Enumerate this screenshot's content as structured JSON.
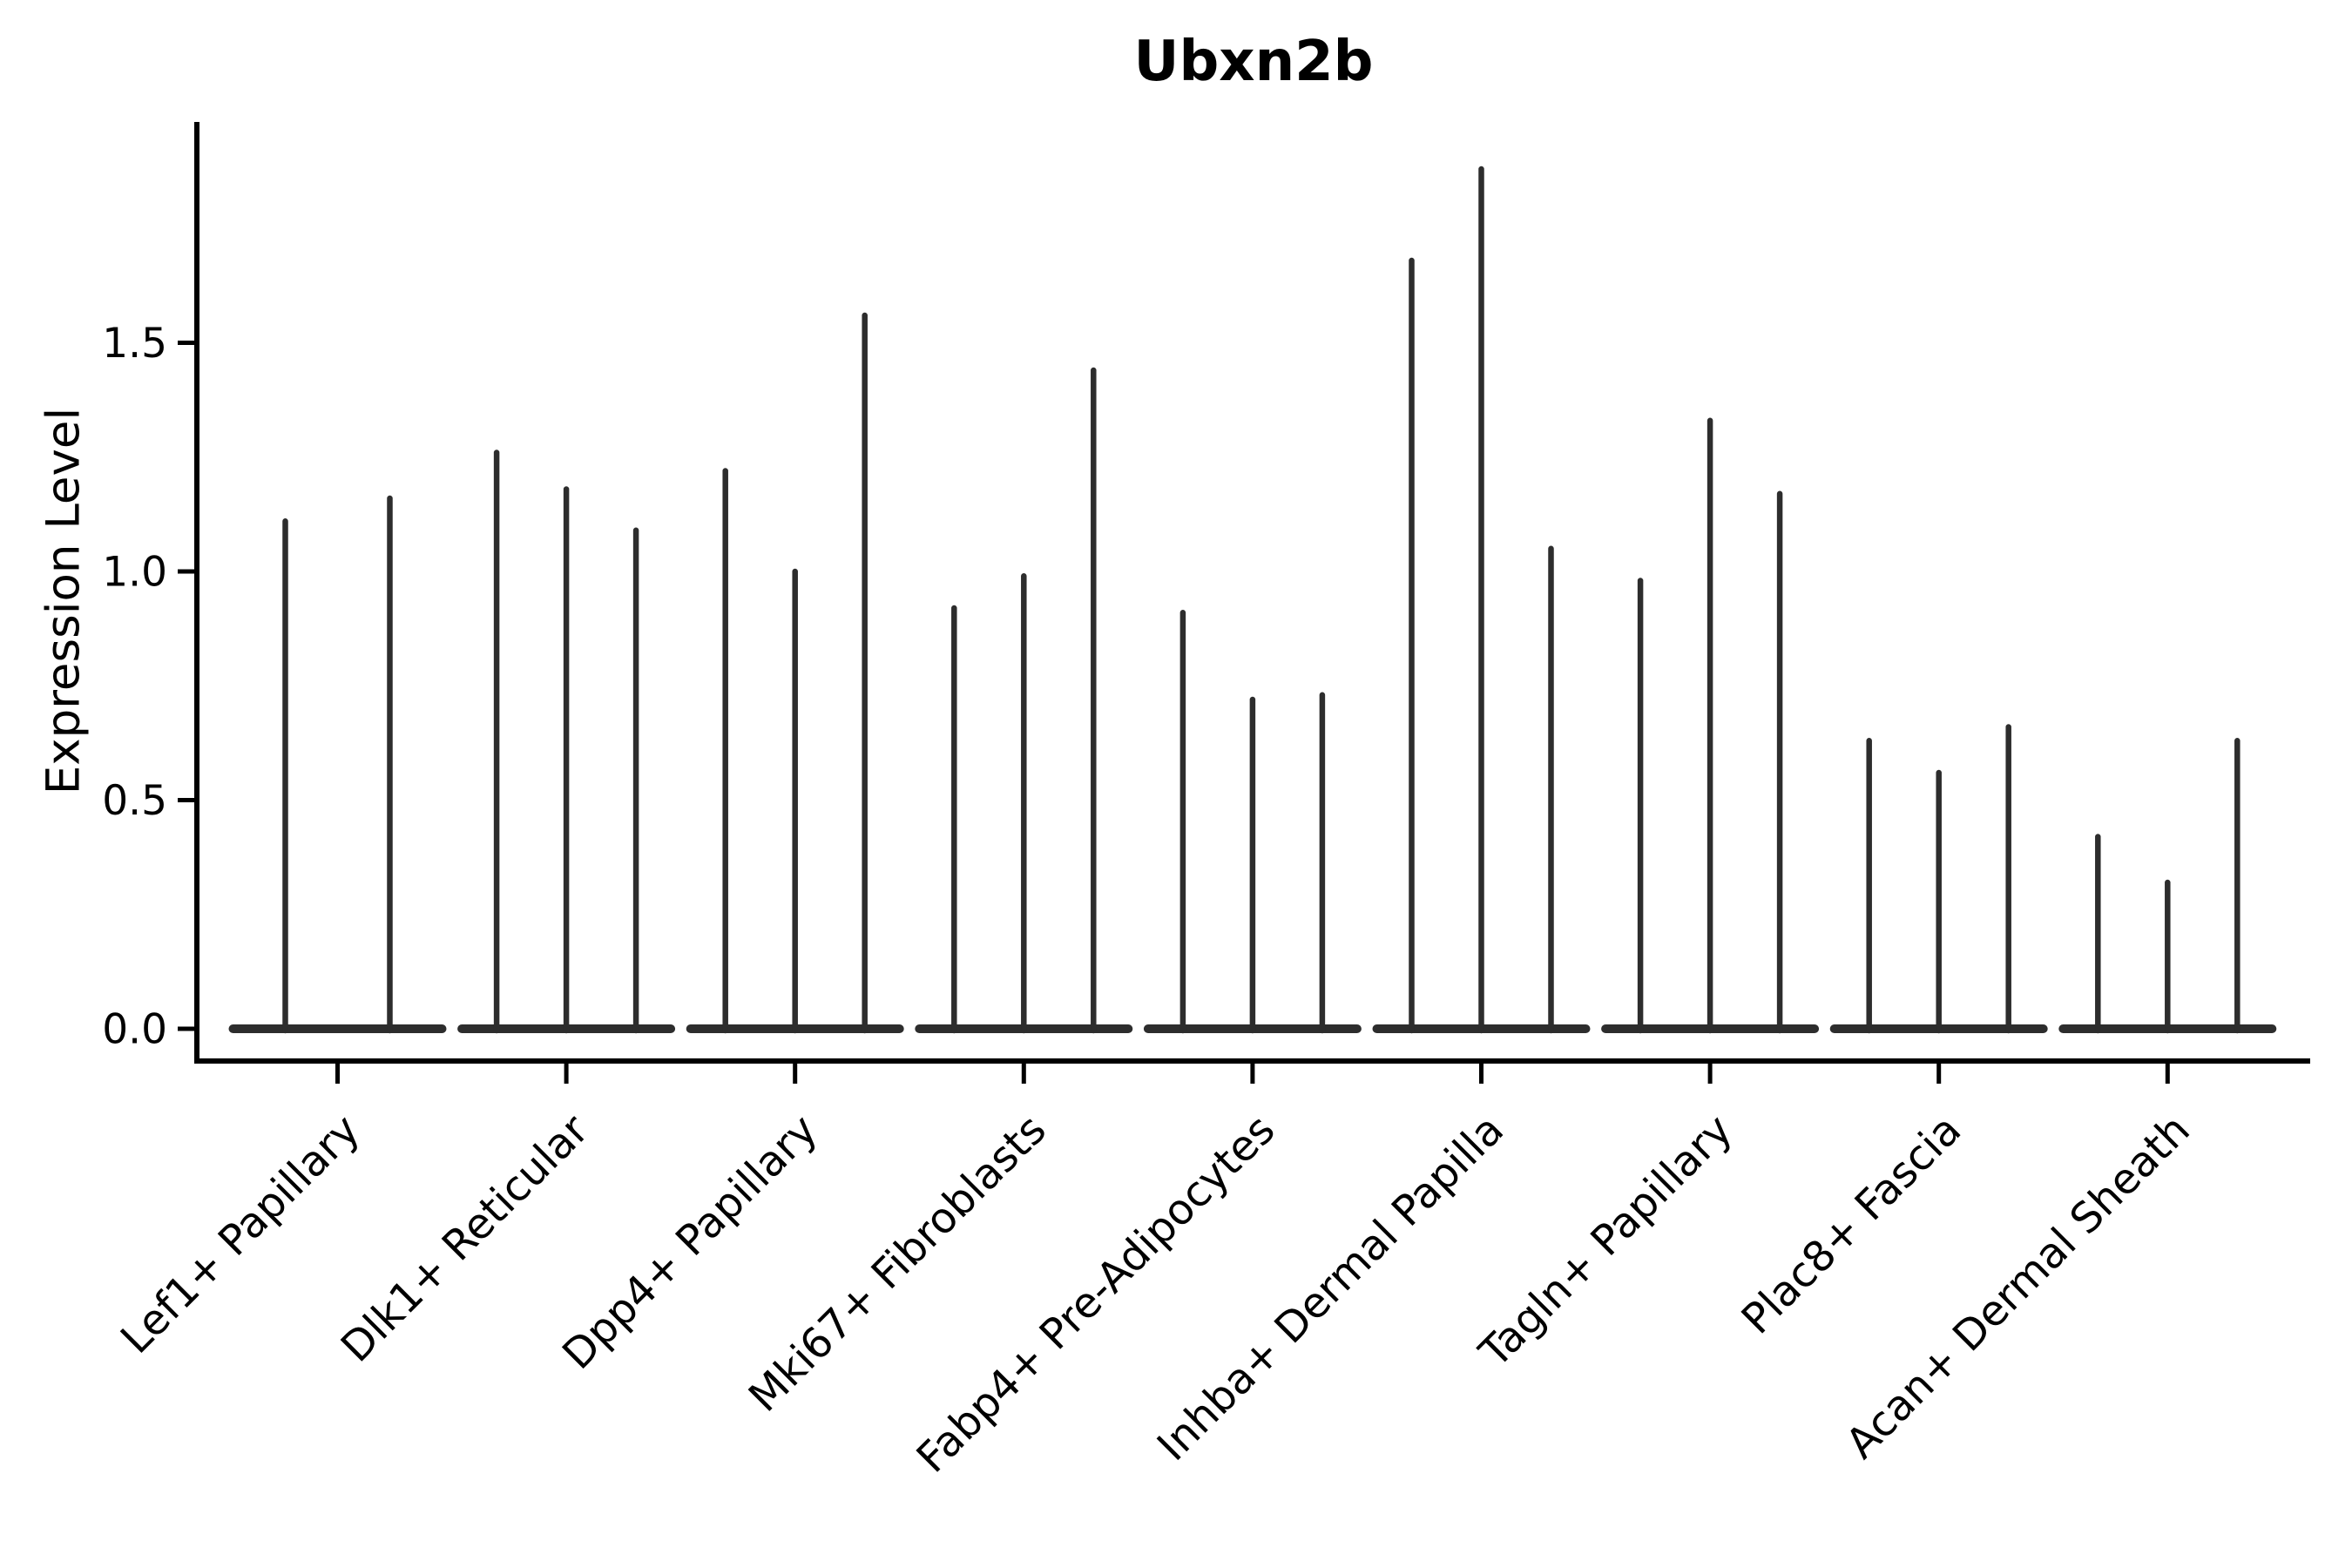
{
  "chart_data": {
    "type": "violin",
    "title": "Ubxn2b",
    "xlabel": "",
    "ylabel": "Expression Level",
    "yticks": [
      "0.0",
      "0.5",
      "1.0",
      "1.5"
    ],
    "ytick_values": [
      0.0,
      0.5,
      1.0,
      1.5
    ],
    "ylim": [
      -0.09,
      1.98
    ],
    "grid": false,
    "legend": "none",
    "style": "thin violin spikes rising from a flat baseline at 0 per group",
    "colors": {
      "violin": "#2d2d2d",
      "axis": "#000000",
      "background": "#ffffff"
    },
    "groups": [
      {
        "label": "Lef1+ Papillary",
        "violin_maxima": [
          1.11,
          1.16
        ]
      },
      {
        "label": "Dlk1+ Reticular",
        "violin_maxima": [
          1.26,
          1.18,
          1.09
        ]
      },
      {
        "label": "Dpp4+ Papillary",
        "violin_maxima": [
          1.22,
          1.0,
          1.56
        ]
      },
      {
        "label": "Mki67+ Fibroblasts",
        "violin_maxima": [
          0.92,
          0.99,
          1.44
        ]
      },
      {
        "label": "Fabp4+ Pre-Adipocytes",
        "violin_maxima": [
          0.91,
          0.72,
          0.73
        ]
      },
      {
        "label": "Inhba+ Dermal Papilla",
        "violin_maxima": [
          1.68,
          1.88,
          1.05
        ]
      },
      {
        "label": "Tagln+ Papillary",
        "violin_maxima": [
          0.98,
          1.33,
          1.17
        ]
      },
      {
        "label": "Plac8+ Fascia",
        "violin_maxima": [
          0.63,
          0.56,
          0.66
        ]
      },
      {
        "label": "Acan+ Dermal Sheath",
        "violin_maxima": [
          0.42,
          0.32,
          0.63
        ]
      }
    ]
  }
}
